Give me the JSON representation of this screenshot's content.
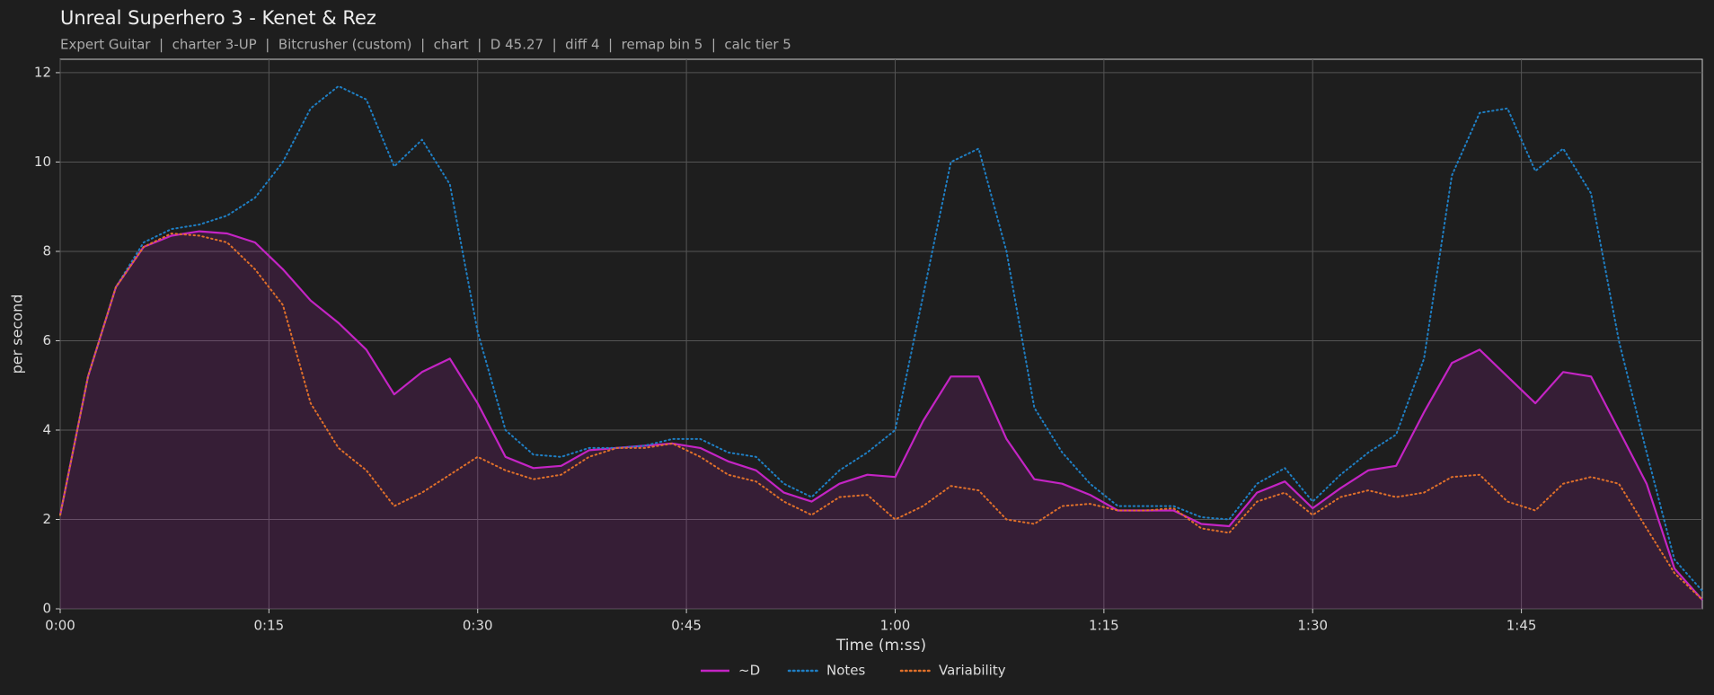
{
  "chart_data": {
    "type": "line",
    "title": "Unreal Superhero 3 - Kenet & Rez",
    "subtitle": "Expert Guitar  |  charter 3-UP  |  Bitcrusher (custom)  |  chart  |  D 45.27  |  diff 4  |  remap bin 5  |  calc tier 5",
    "x_label": "Time (m:ss)",
    "y_label": "per second",
    "x": [
      0,
      2,
      4,
      6,
      8,
      10,
      12,
      14,
      16,
      18,
      20,
      22,
      24,
      26,
      28,
      30,
      32,
      34,
      36,
      38,
      40,
      42,
      44,
      46,
      48,
      50,
      52,
      54,
      56,
      58,
      60,
      62,
      64,
      66,
      68,
      70,
      72,
      74,
      76,
      78,
      80,
      82,
      84,
      86,
      88,
      90,
      92,
      94,
      96,
      98,
      100,
      102,
      104,
      106,
      108,
      110,
      112,
      114,
      116,
      118
    ],
    "xlim": [
      0,
      118
    ],
    "xticks": [
      {
        "value": 0,
        "label": "0:00"
      },
      {
        "value": 15,
        "label": "0:15"
      },
      {
        "value": 30,
        "label": "0:30"
      },
      {
        "value": 45,
        "label": "0:45"
      },
      {
        "value": 60,
        "label": "1:00"
      },
      {
        "value": 75,
        "label": "1:15"
      },
      {
        "value": 90,
        "label": "1:30"
      },
      {
        "value": 105,
        "label": "1:45"
      }
    ],
    "ylim": [
      0,
      12.3
    ],
    "yticks": [
      0,
      2,
      4,
      6,
      8,
      10,
      12
    ],
    "grid": true,
    "legend": "bottom",
    "series": [
      {
        "name": "~D",
        "color": "#c424c4",
        "style": "solid",
        "fill": true,
        "values": [
          2.1,
          5.2,
          7.2,
          8.1,
          8.35,
          8.45,
          8.4,
          8.2,
          7.6,
          6.9,
          6.4,
          5.8,
          4.8,
          5.3,
          5.6,
          4.6,
          3.4,
          3.15,
          3.2,
          3.55,
          3.6,
          3.65,
          3.7,
          3.6,
          3.3,
          3.1,
          2.6,
          2.4,
          2.8,
          3.0,
          2.95,
          4.2,
          5.2,
          5.2,
          3.8,
          2.9,
          2.8,
          2.55,
          2.2,
          2.2,
          2.2,
          1.9,
          1.85,
          2.6,
          2.85,
          2.25,
          2.7,
          3.1,
          3.2,
          4.4,
          5.5,
          5.8,
          5.2,
          4.6,
          5.3,
          5.2,
          4.0,
          2.8,
          0.9,
          0.2
        ]
      },
      {
        "name": "Notes",
        "color": "#1f7fc4",
        "style": "dotted",
        "fill": false,
        "values": [
          2.1,
          5.2,
          7.2,
          8.2,
          8.5,
          8.6,
          8.8,
          9.2,
          10.0,
          11.2,
          11.7,
          11.4,
          9.9,
          10.5,
          9.5,
          6.2,
          4.0,
          3.45,
          3.4,
          3.6,
          3.6,
          3.65,
          3.8,
          3.8,
          3.5,
          3.4,
          2.8,
          2.5,
          3.1,
          3.5,
          4.0,
          7.0,
          10.0,
          10.3,
          8.0,
          4.5,
          3.5,
          2.8,
          2.3,
          2.3,
          2.3,
          2.05,
          2.0,
          2.8,
          3.15,
          2.4,
          3.0,
          3.5,
          3.9,
          5.6,
          9.7,
          11.1,
          11.2,
          9.8,
          10.3,
          9.3,
          6.0,
          3.5,
          1.1,
          0.4
        ]
      },
      {
        "name": "Variability",
        "color": "#e0702a",
        "style": "dotted",
        "fill": false,
        "values": [
          2.1,
          5.2,
          7.2,
          8.1,
          8.4,
          8.35,
          8.2,
          7.6,
          6.8,
          4.6,
          3.6,
          3.1,
          2.3,
          2.6,
          3.0,
          3.4,
          3.1,
          2.9,
          3.0,
          3.4,
          3.6,
          3.6,
          3.7,
          3.4,
          3.0,
          2.85,
          2.4,
          2.1,
          2.5,
          2.55,
          2.0,
          2.3,
          2.75,
          2.65,
          2.0,
          1.9,
          2.3,
          2.35,
          2.2,
          2.2,
          2.25,
          1.8,
          1.7,
          2.4,
          2.6,
          2.1,
          2.5,
          2.65,
          2.5,
          2.6,
          2.95,
          3.0,
          2.4,
          2.2,
          2.8,
          2.95,
          2.8,
          1.8,
          0.8,
          0.2
        ]
      }
    ]
  }
}
